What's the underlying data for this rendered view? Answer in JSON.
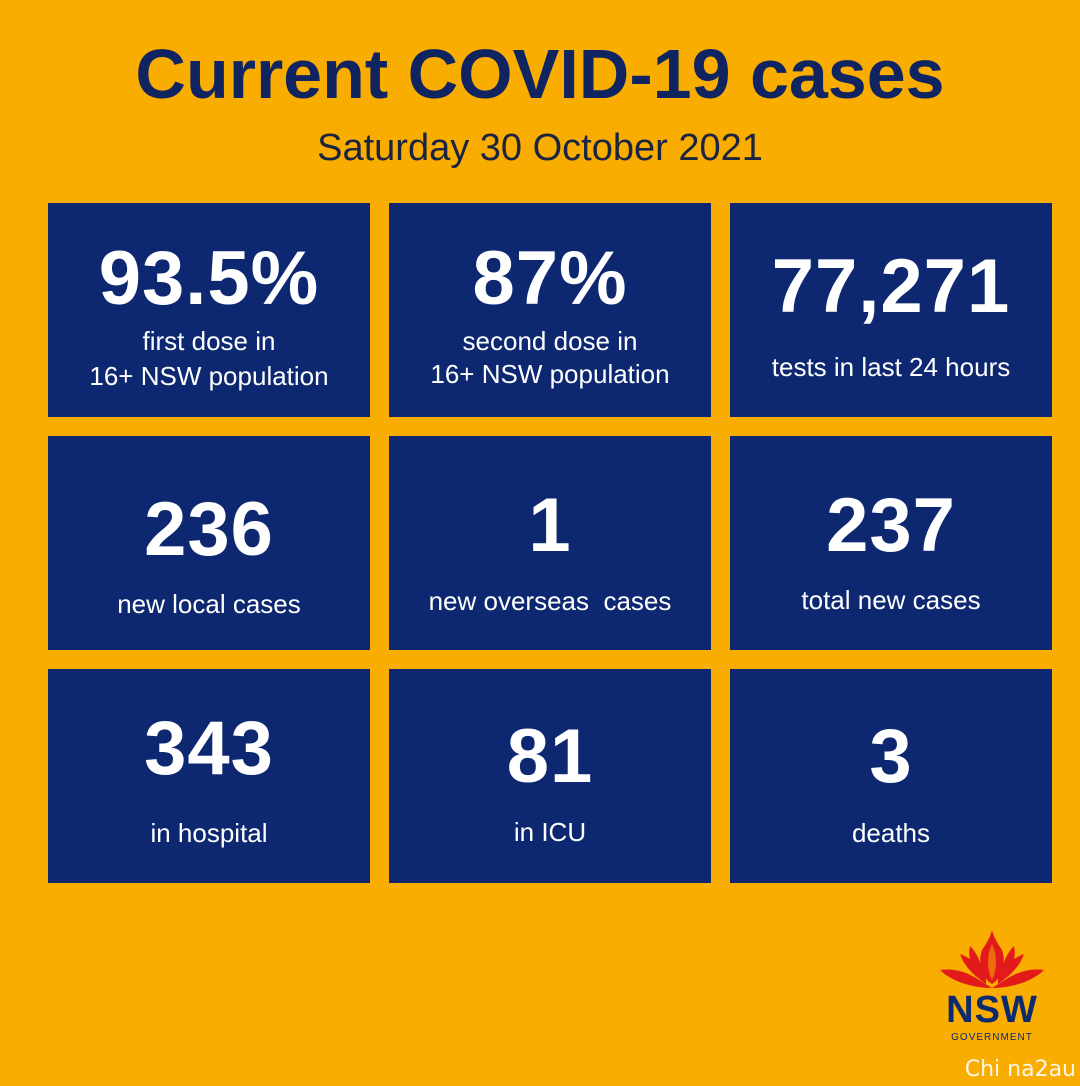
{
  "header": {
    "title": "Current COVID-19 cases",
    "date": "Saturday 30 October 2021"
  },
  "tiles": [
    {
      "value": "93.5%",
      "label_lines": [
        "first dose in",
        "16+ NSW population"
      ]
    },
    {
      "value": "87%",
      "label_lines": [
        "second dose in",
        "16+ NSW population"
      ]
    },
    {
      "value": "77,271",
      "label_lines": [
        "tests in last 24 hours"
      ]
    },
    {
      "value": "236",
      "label_lines": [
        "new local cases"
      ]
    },
    {
      "value": "1",
      "label_lines": [
        "new overseas  cases"
      ]
    },
    {
      "value": "237",
      "label_lines": [
        "total new cases"
      ]
    },
    {
      "value": "343",
      "label_lines": [
        "in hospital"
      ]
    },
    {
      "value": "81",
      "label_lines": [
        "in ICU"
      ]
    },
    {
      "value": "3",
      "label_lines": [
        "deaths"
      ]
    }
  ],
  "logo": {
    "name": "NSW",
    "subtext": "GOVERNMENT",
    "icon": "waratah-flower-icon",
    "colors": {
      "petal": "#e31a1c",
      "text": "#0d2a6e"
    }
  },
  "watermark": "Chi na2au",
  "colors": {
    "background": "#f9ad00",
    "tile": "#0d2870",
    "title": "#0f2460"
  }
}
